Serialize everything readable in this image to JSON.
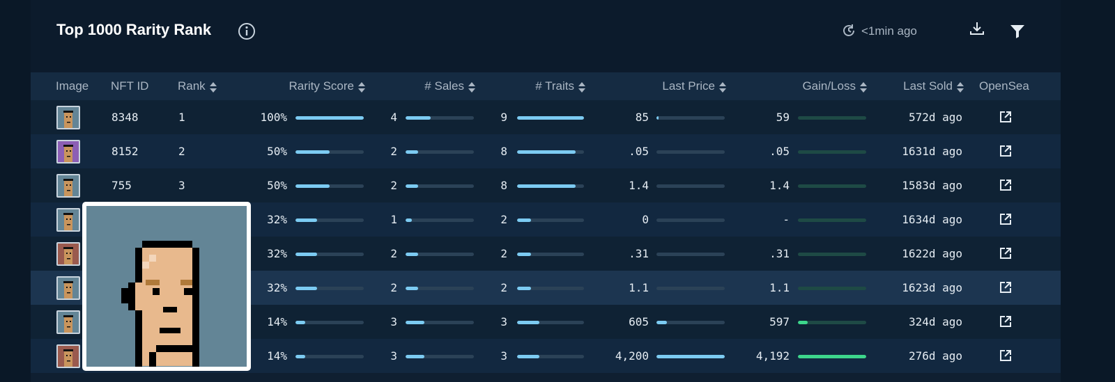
{
  "header": {
    "title": "Top 1000 Rarity Rank",
    "updated": "<1min ago"
  },
  "columns": {
    "image": "Image",
    "nft_id": "NFT ID",
    "rank": "Rank",
    "rarity_score": "Rarity Score",
    "sales": "# Sales",
    "traits": "# Traits",
    "last_price": "Last Price",
    "gain_loss": "Gain/Loss",
    "last_sold": "Last Sold",
    "opensea": "OpenSea"
  },
  "colors": {
    "bar_blue": "#7ccbf2",
    "bar_green": "#3dd68c",
    "panel_bg": "#0f1f31"
  },
  "rows": [
    {
      "nft_id": "8348",
      "rank": "1",
      "rarity_score": "100%",
      "rarity_frac": 1.0,
      "sales": "4",
      "sales_frac": 0.37,
      "traits": "9",
      "traits_frac": 1.0,
      "last_price": "85",
      "price_frac": 0.02,
      "gain_loss": "59",
      "gain_frac": 0.0,
      "last_sold": "572d ago",
      "thumb_bg": "#638596"
    },
    {
      "nft_id": "8152",
      "rank": "2",
      "rarity_score": "50%",
      "rarity_frac": 0.5,
      "sales": "2",
      "sales_frac": 0.18,
      "traits": "8",
      "traits_frac": 0.88,
      "last_price": ".05",
      "price_frac": 0.0,
      "gain_loss": ".05",
      "gain_frac": 0.0,
      "last_sold": "1631d ago",
      "thumb_bg": "#8c5fb5"
    },
    {
      "nft_id": "755",
      "rank": "3",
      "rarity_score": "50%",
      "rarity_frac": 0.5,
      "sales": "2",
      "sales_frac": 0.18,
      "traits": "8",
      "traits_frac": 0.88,
      "last_price": "1.4",
      "price_frac": 0.0,
      "gain_loss": "1.4",
      "gain_frac": 0.0,
      "last_sold": "1583d ago",
      "thumb_bg": "#638596"
    },
    {
      "nft_id": "",
      "rank": "",
      "rarity_score": "32%",
      "rarity_frac": 0.32,
      "sales": "1",
      "sales_frac": 0.09,
      "traits": "2",
      "traits_frac": 0.21,
      "last_price": "0",
      "price_frac": 0.0,
      "gain_loss": "-",
      "gain_frac": 0.0,
      "last_sold": "1634d ago",
      "thumb_bg": "#638596"
    },
    {
      "nft_id": "",
      "rank": "",
      "rarity_score": "32%",
      "rarity_frac": 0.32,
      "sales": "2",
      "sales_frac": 0.18,
      "traits": "2",
      "traits_frac": 0.21,
      "last_price": ".31",
      "price_frac": 0.0,
      "gain_loss": ".31",
      "gain_frac": 0.0,
      "last_sold": "1622d ago",
      "thumb_bg": "#9a5a4e"
    },
    {
      "nft_id": "",
      "rank": "",
      "rarity_score": "32%",
      "rarity_frac": 0.32,
      "sales": "2",
      "sales_frac": 0.18,
      "traits": "2",
      "traits_frac": 0.21,
      "last_price": "1.1",
      "price_frac": 0.0,
      "gain_loss": "1.1",
      "gain_frac": 0.0,
      "last_sold": "1623d ago",
      "thumb_bg": "#638596"
    },
    {
      "nft_id": "",
      "rank": "",
      "rarity_score": "14%",
      "rarity_frac": 0.14,
      "sales": "3",
      "sales_frac": 0.28,
      "traits": "3",
      "traits_frac": 0.33,
      "last_price": "605",
      "price_frac": 0.15,
      "gain_loss": "597",
      "gain_frac": 0.14,
      "last_sold": "324d ago",
      "thumb_bg": "#638596"
    },
    {
      "nft_id": "",
      "rank": "",
      "rarity_score": "14%",
      "rarity_frac": 0.14,
      "sales": "3",
      "sales_frac": 0.28,
      "traits": "3",
      "traits_frac": 0.33,
      "last_price": "4,200",
      "price_frac": 1.0,
      "gain_loss": "4,192",
      "gain_frac": 1.0,
      "last_sold": "276d ago",
      "thumb_bg": "#9a5a4e"
    }
  ]
}
